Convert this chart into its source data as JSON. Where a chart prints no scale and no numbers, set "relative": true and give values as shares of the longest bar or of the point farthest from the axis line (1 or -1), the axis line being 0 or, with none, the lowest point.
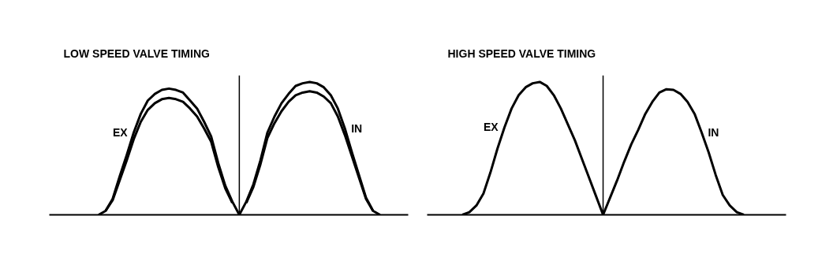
{
  "chart_data": [
    {
      "type": "line",
      "title": "LOW SPEED VALVE TIMING",
      "relative": true,
      "tick_labels": false,
      "categories": [
        null,
        null,
        null,
        null,
        null,
        null,
        null,
        null,
        null,
        null,
        null,
        null,
        null,
        null,
        null,
        null,
        null,
        null,
        null,
        null,
        null,
        null,
        null,
        null,
        null,
        null,
        null,
        null,
        null,
        null,
        null,
        null,
        null,
        null,
        null,
        null,
        null,
        null,
        null,
        null,
        null,
        null,
        null,
        null,
        null,
        null,
        null,
        null,
        null,
        null,
        null,
        null
      ],
      "series": [
        {
          "name": "EX",
          "color": "#000000",
          "values": [
            null,
            null,
            null,
            null,
            null,
            null,
            null,
            0,
            0.03,
            0.12,
            0.29,
            0.45,
            0.62,
            0.76,
            0.86,
            0.91,
            0.94,
            0.95,
            0.94,
            0.92,
            0.86,
            0.8,
            0.7,
            0.59,
            0.39,
            0.22,
            0.1,
            0,
            null,
            null,
            null,
            null,
            null,
            null,
            null,
            null,
            null,
            null,
            null,
            null,
            null,
            null,
            null,
            null,
            null,
            null,
            null,
            null,
            null,
            null,
            null,
            null
          ]
        },
        {
          "color": "#000000",
          "values": [
            null,
            null,
            null,
            null,
            null,
            null,
            null,
            null,
            0.03,
            0.11,
            0.26,
            0.41,
            0.57,
            0.7,
            0.79,
            0.84,
            0.87,
            0.88,
            0.87,
            0.85,
            0.8,
            0.74,
            0.65,
            0.55,
            0.36,
            0.2,
            0.09,
            null,
            null,
            null,
            null,
            null,
            null,
            null,
            null,
            null,
            null,
            null,
            null,
            null,
            null,
            null,
            null,
            null,
            null,
            null,
            null,
            null,
            null,
            null,
            null,
            null
          ]
        },
        {
          "name": "IN",
          "color": "#000000",
          "values": [
            null,
            null,
            null,
            null,
            null,
            null,
            null,
            null,
            null,
            null,
            null,
            null,
            null,
            null,
            null,
            null,
            null,
            null,
            null,
            null,
            null,
            null,
            null,
            null,
            null,
            null,
            null,
            0,
            0.1,
            0.23,
            0.41,
            0.62,
            0.74,
            0.84,
            0.91,
            0.97,
            0.99,
            1,
            0.99,
            0.96,
            0.9,
            0.8,
            0.65,
            0.47,
            0.3,
            0.13,
            0.03,
            0,
            null,
            null,
            null,
            null
          ]
        },
        {
          "color": "#000000",
          "values": [
            null,
            null,
            null,
            null,
            null,
            null,
            null,
            null,
            null,
            null,
            null,
            null,
            null,
            null,
            null,
            null,
            null,
            null,
            null,
            null,
            null,
            null,
            null,
            null,
            null,
            null,
            null,
            null,
            0.09,
            0.21,
            0.38,
            0.58,
            0.69,
            0.78,
            0.85,
            0.9,
            0.92,
            0.93,
            0.92,
            0.89,
            0.84,
            0.74,
            0.6,
            0.44,
            0.28,
            0.12,
            0.03,
            null,
            null,
            null,
            null,
            null
          ]
        }
      ]
    },
    {
      "type": "line",
      "title": "HIGH SPEED VALVE TIMING",
      "relative": true,
      "tick_labels": false,
      "categories": [
        null,
        null,
        null,
        null,
        null,
        null,
        null,
        null,
        null,
        null,
        null,
        null,
        null,
        null,
        null,
        null,
        null,
        null,
        null,
        null,
        null,
        null,
        null,
        null,
        null,
        null,
        null,
        null,
        null,
        null,
        null,
        null,
        null,
        null,
        null,
        null,
        null,
        null,
        null,
        null,
        null,
        null,
        null,
        null,
        null,
        null,
        null,
        null,
        null,
        null,
        null,
        null
      ],
      "series": [
        {
          "name": "EX",
          "color": "#000000",
          "values": [
            null,
            null,
            null,
            null,
            null,
            0,
            0.02,
            0.07,
            0.16,
            0.32,
            0.5,
            0.66,
            0.8,
            0.9,
            0.96,
            0.99,
            1,
            0.97,
            0.9,
            0.8,
            0.68,
            0.56,
            0.42,
            0.28,
            0.14,
            0,
            null,
            null,
            null,
            null,
            null,
            null,
            null,
            null,
            null,
            null,
            null,
            null,
            null,
            null,
            null,
            null,
            null,
            null,
            null,
            null,
            null,
            null,
            null,
            null,
            null,
            null
          ]
        },
        {
          "name": "IN",
          "color": "#000000",
          "values": [
            null,
            null,
            null,
            null,
            null,
            null,
            null,
            null,
            null,
            null,
            null,
            null,
            null,
            null,
            null,
            null,
            null,
            null,
            null,
            null,
            null,
            null,
            null,
            null,
            null,
            0,
            0.13,
            0.26,
            0.4,
            0.53,
            0.64,
            0.76,
            0.85,
            0.92,
            0.945,
            0.94,
            0.91,
            0.85,
            0.76,
            0.62,
            0.47,
            0.3,
            0.15,
            0.07,
            0.02,
            0,
            null,
            null,
            null,
            null,
            null,
            null
          ]
        }
      ]
    }
  ]
}
